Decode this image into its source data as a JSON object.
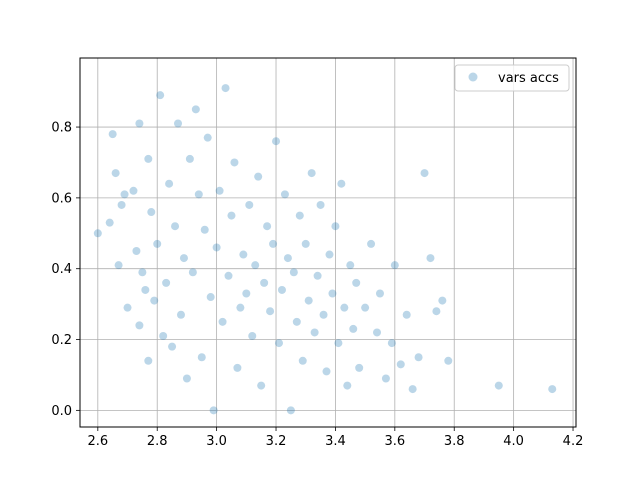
{
  "chart_data": {
    "type": "scatter",
    "title": "",
    "xlabel": "",
    "ylabel": "",
    "xlim": [
      2.54,
      4.21
    ],
    "ylim": [
      -0.047,
      0.995
    ],
    "xticks": [
      2.6,
      2.8,
      3.0,
      3.2,
      3.4,
      3.6,
      3.8,
      4.0,
      4.2
    ],
    "xtick_labels": [
      "2.6",
      "2.8",
      "3.0",
      "3.2",
      "3.4",
      "3.6",
      "3.8",
      "4.0",
      "4.2"
    ],
    "yticks": [
      0.0,
      0.2,
      0.4,
      0.6,
      0.8
    ],
    "ytick_labels": [
      "0.0",
      "0.2",
      "0.4",
      "0.6",
      "0.8"
    ],
    "grid": true,
    "legend_position": "upper right",
    "series": [
      {
        "name": "vars accs",
        "color": "#1f77b4",
        "alpha": 0.3,
        "x": [
          2.6,
          2.64,
          2.65,
          2.66,
          2.67,
          2.68,
          2.69,
          2.7,
          2.72,
          2.73,
          2.74,
          2.74,
          2.75,
          2.76,
          2.77,
          2.77,
          2.78,
          2.79,
          2.8,
          2.81,
          2.82,
          2.83,
          2.84,
          2.85,
          2.86,
          2.87,
          2.88,
          2.89,
          2.9,
          2.91,
          2.92,
          2.93,
          2.94,
          2.95,
          2.96,
          2.97,
          2.98,
          2.99,
          3.0,
          3.01,
          3.02,
          3.03,
          3.04,
          3.05,
          3.06,
          3.07,
          3.08,
          3.09,
          3.1,
          3.11,
          3.12,
          3.13,
          3.14,
          3.15,
          3.16,
          3.17,
          3.18,
          3.19,
          3.2,
          3.21,
          3.22,
          3.23,
          3.24,
          3.25,
          3.26,
          3.27,
          3.28,
          3.29,
          3.3,
          3.31,
          3.32,
          3.33,
          3.34,
          3.35,
          3.36,
          3.37,
          3.38,
          3.39,
          3.4,
          3.41,
          3.42,
          3.43,
          3.44,
          3.45,
          3.46,
          3.47,
          3.48,
          3.5,
          3.52,
          3.54,
          3.55,
          3.57,
          3.59,
          3.6,
          3.62,
          3.64,
          3.66,
          3.68,
          3.7,
          3.72,
          3.74,
          3.76,
          3.78,
          3.95,
          4.13
        ],
        "y": [
          0.5,
          0.53,
          0.78,
          0.67,
          0.41,
          0.58,
          0.61,
          0.29,
          0.62,
          0.45,
          0.81,
          0.24,
          0.39,
          0.34,
          0.14,
          0.71,
          0.56,
          0.31,
          0.47,
          0.89,
          0.21,
          0.36,
          0.64,
          0.18,
          0.52,
          0.81,
          0.27,
          0.43,
          0.09,
          0.71,
          0.39,
          0.85,
          0.61,
          0.15,
          0.51,
          0.77,
          0.32,
          0.0,
          0.46,
          0.62,
          0.25,
          0.91,
          0.38,
          0.55,
          0.7,
          0.12,
          0.29,
          0.44,
          0.33,
          0.58,
          0.21,
          0.41,
          0.66,
          0.07,
          0.36,
          0.52,
          0.28,
          0.47,
          0.76,
          0.19,
          0.34,
          0.61,
          0.43,
          0.0,
          0.39,
          0.25,
          0.55,
          0.14,
          0.47,
          0.31,
          0.67,
          0.22,
          0.38,
          0.58,
          0.27,
          0.11,
          0.44,
          0.33,
          0.52,
          0.19,
          0.64,
          0.29,
          0.07,
          0.41,
          0.23,
          0.36,
          0.12,
          0.29,
          0.47,
          0.22,
          0.33,
          0.09,
          0.19,
          0.41,
          0.13,
          0.27,
          0.06,
          0.15,
          0.67,
          0.43,
          0.28,
          0.31,
          0.14,
          0.07,
          0.06
        ]
      }
    ]
  }
}
